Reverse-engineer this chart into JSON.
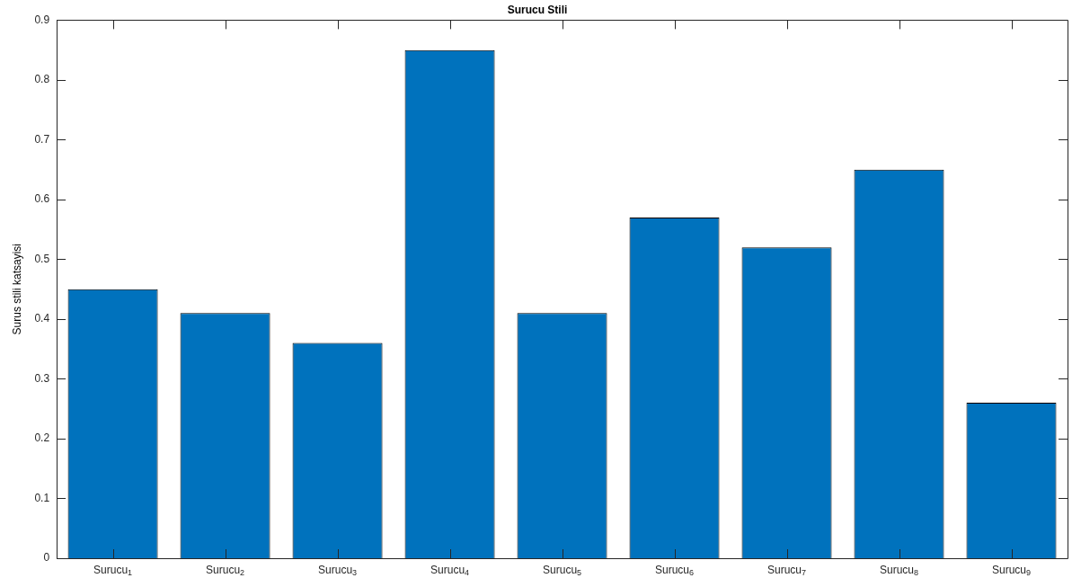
{
  "chart_data": {
    "type": "bar",
    "title": "Surucu Stili",
    "ylabel": "Surus stili katsayisi",
    "categories": [
      "Surucu$_{1}$",
      "Surucu$_{2}$",
      "Surucu$_{3}$",
      "Surucu$_{4}$",
      "Surucu$_{5}$",
      "Surucu$_{6}$",
      "Surucu$_{7}$",
      "Surucu$_{8}$",
      "Surucu$_{9}$"
    ],
    "values": [
      0.45,
      0.41,
      0.36,
      0.85,
      0.41,
      0.57,
      0.52,
      0.65,
      0.26
    ],
    "color": "#0072bd",
    "ylim": [
      0,
      0.9
    ],
    "yticks": [
      0,
      0.1,
      0.2,
      0.3,
      0.4,
      0.5,
      0.6,
      0.7,
      0.8,
      0.9
    ],
    "grid": false,
    "legend": false
  }
}
